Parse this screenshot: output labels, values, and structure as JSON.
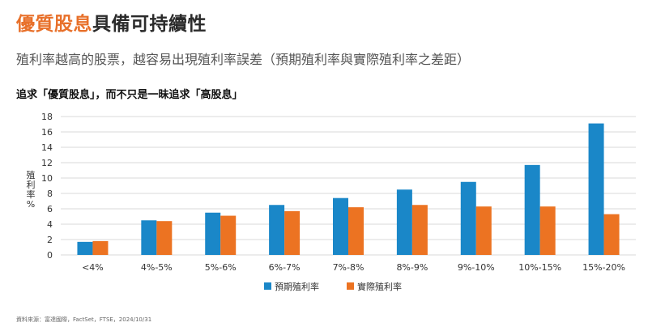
{
  "header": {
    "title_accent": "優質股息",
    "title_rest": "具備可持續性",
    "subtitle": "殖利率越高的股票，越容易出現殖利率誤差（預期殖利率與實際殖利率之差距）"
  },
  "footer": {
    "source": "資料來源：富達國際，FactSet，FTSE，2024/10/31"
  },
  "colors": {
    "accent": "#e8702a",
    "series_expected": "#1a87c8",
    "series_actual": "#ec7322",
    "grid": "#d9d9d9"
  },
  "chart_data": {
    "type": "bar",
    "title": "追求「優質股息」，而不只是一昧追求「高股息」",
    "xlabel": "",
    "ylabel": [
      "殖",
      "利",
      "率",
      "%"
    ],
    "ylim": [
      0,
      18
    ],
    "yticks": [
      0,
      2,
      4,
      6,
      8,
      10,
      12,
      14,
      16,
      18
    ],
    "categories": [
      "<4%",
      "4%-5%",
      "5%-6%",
      "6%-7%",
      "7%-8%",
      "8%-9%",
      "9%-10%",
      "10%-15%",
      "15%-20%"
    ],
    "series": [
      {
        "name": "預期殖利率",
        "color": "#1a87c8",
        "values": [
          1.7,
          4.5,
          5.5,
          6.5,
          7.4,
          8.5,
          9.5,
          11.7,
          17.1
        ]
      },
      {
        "name": "實際殖利率",
        "color": "#ec7322",
        "values": [
          1.8,
          4.4,
          5.1,
          5.7,
          6.2,
          6.5,
          6.3,
          6.3,
          5.3
        ]
      }
    ],
    "grid": true,
    "legend": "bottom-center"
  }
}
